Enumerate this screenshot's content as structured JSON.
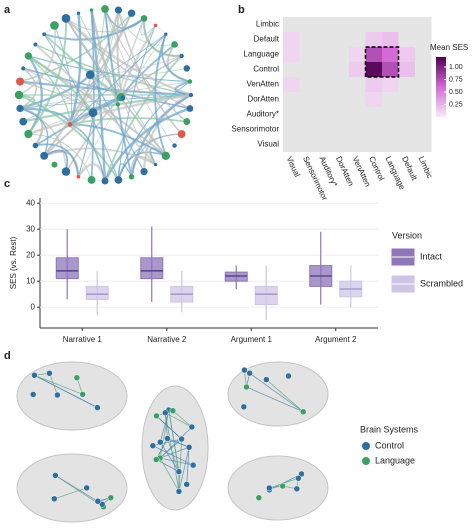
{
  "panels": [
    "a",
    "b",
    "c",
    "d"
  ],
  "chart_data": [
    {
      "type": "heatmap",
      "rows": [
        "Limbic",
        "Default",
        "Language",
        "Control",
        "VenAtten",
        "DorAtten",
        "Auditory*",
        "Sensorimotor",
        "Visual"
      ],
      "columns": [
        "Visual",
        "Sensorimotor",
        "Auditory*",
        "DorAtten",
        "VenAtten",
        "Control",
        "Language",
        "Default",
        "Limbic"
      ],
      "values": [
        [
          null,
          null,
          null,
          null,
          null,
          null,
          null,
          null,
          null
        ],
        [
          0.1,
          null,
          null,
          null,
          null,
          0.15,
          0.2,
          null,
          null
        ],
        [
          0.1,
          null,
          null,
          null,
          0.1,
          0.75,
          0.6,
          0.15,
          null
        ],
        [
          null,
          null,
          null,
          null,
          0.15,
          1.15,
          0.75,
          0.2,
          null
        ],
        [
          0.1,
          null,
          null,
          null,
          null,
          0.15,
          0.1,
          null,
          null
        ],
        [
          null,
          null,
          null,
          null,
          null,
          0.1,
          null,
          null,
          null
        ],
        [
          null,
          null,
          null,
          null,
          null,
          null,
          null,
          null,
          null
        ],
        [
          null,
          null,
          null,
          null,
          null,
          null,
          null,
          null,
          null
        ],
        [
          null,
          null,
          null,
          null,
          null,
          null,
          null,
          null,
          null
        ]
      ],
      "colorbar_title": "Mean SES",
      "clim": [
        0,
        1.2
      ],
      "cticks": [
        {
          "value": 0.25,
          "label": "0.25"
        },
        {
          "value": 0.5,
          "label": "0.50"
        },
        {
          "value": 0.75,
          "label": "0.75"
        },
        {
          "value": 1,
          "label": "1.00"
        }
      ],
      "colors": [
        "#f6eaf6",
        "#d36ad6",
        "#4f0052"
      ],
      "na_color": "#e5e5e5"
    },
    {
      "type": "boxplot",
      "categories": [
        "Narrative 1",
        "Narrative 2",
        "Argument 1",
        "Argument 2"
      ],
      "ylabel": "SES (vs. Rest)",
      "ylim": [
        -8,
        42
      ],
      "yticks": [
        0,
        10,
        20,
        30,
        40
      ],
      "grid": true,
      "legend_title": "Version",
      "series": [
        {
          "name": "Intact",
          "color": "#8e76b8",
          "whisker_low": [
            3,
            2,
            7,
            1
          ],
          "q1": [
            11,
            11,
            10,
            8
          ],
          "median": [
            14,
            14,
            12,
            12
          ],
          "q3": [
            19,
            19,
            13.5,
            16
          ],
          "whisker_high": [
            30,
            31,
            16,
            29
          ]
        },
        {
          "name": "Scrambled",
          "color": "#cdc5e6",
          "whisker_low": [
            -3,
            -2,
            -5,
            0
          ],
          "q1": [
            3,
            2,
            1,
            4
          ],
          "median": [
            5,
            5,
            5,
            7
          ],
          "q3": [
            8,
            8,
            8,
            10
          ],
          "whisker_high": [
            14,
            14,
            16,
            16
          ]
        }
      ]
    }
  ],
  "brain_legend": {
    "title": "Brain Systems",
    "items": [
      {
        "name": "Control",
        "color": "#2f6f9f"
      },
      {
        "name": "Language",
        "color": "#3aa064"
      }
    ]
  }
}
